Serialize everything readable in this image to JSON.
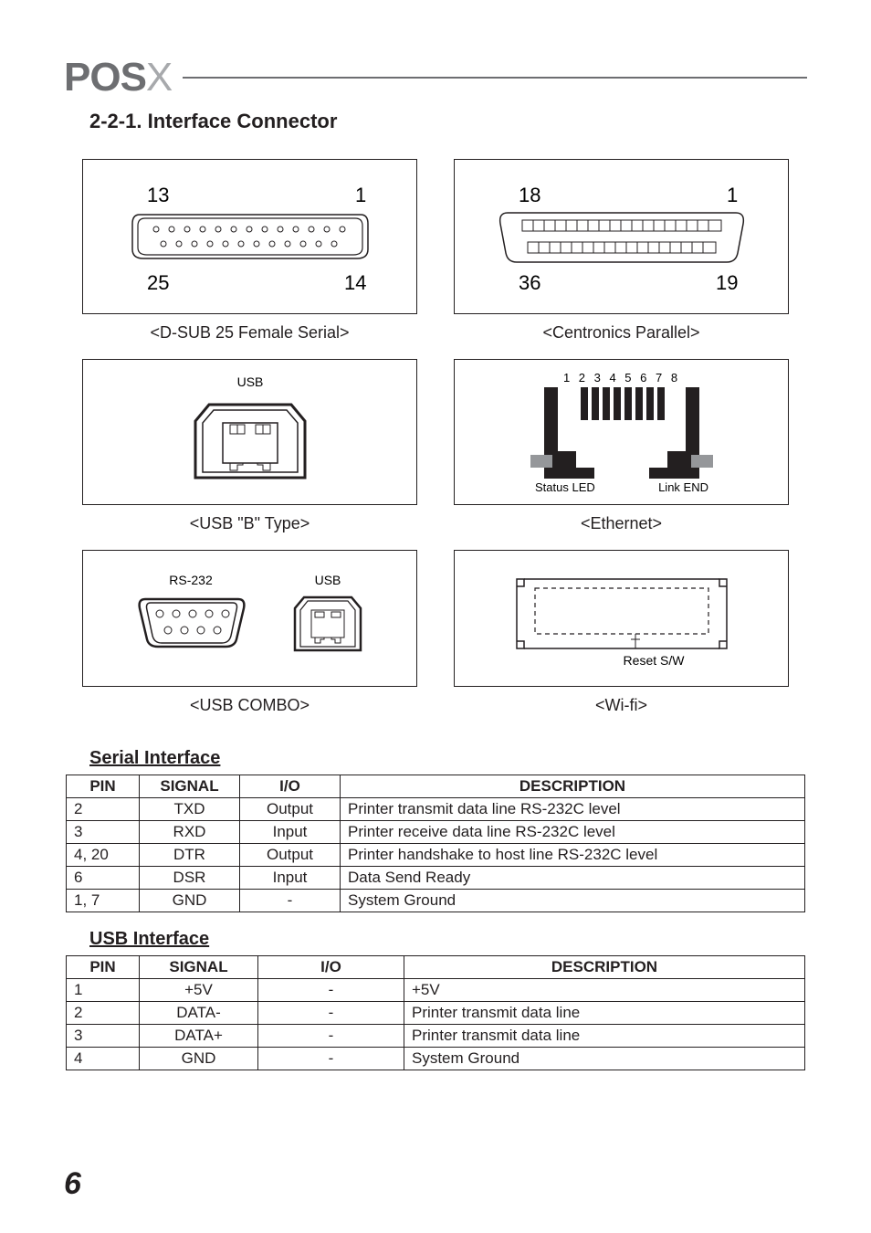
{
  "logo": {
    "brand": "POS",
    "suffix": "X"
  },
  "section_title": "2-2-1. Interface Connector",
  "diagrams": {
    "dsub": {
      "caption": "<D-SUB 25 Female Serial>",
      "labels": {
        "tl": "13",
        "tr": "1",
        "bl": "25",
        "br": "14"
      }
    },
    "centronics": {
      "caption": "<Centronics Parallel>",
      "labels": {
        "tl": "18",
        "tr": "1",
        "bl": "36",
        "br": "19"
      }
    },
    "usb_b": {
      "caption": "<USB \"B\" Type>",
      "label": "USB"
    },
    "ethernet": {
      "caption": "<Ethernet>",
      "top_label": "1 2 3 4 5 6 7 8",
      "left_label": "Status LED",
      "right_label": "Link END"
    },
    "usb_combo": {
      "caption": "<USB COMBO>",
      "left_label": "RS-232",
      "right_label": "USB"
    },
    "wifi": {
      "caption": "<Wi-fi>",
      "label": "Reset S/W"
    }
  },
  "serial_table": {
    "heading": "Serial Interface",
    "columns": [
      "PIN",
      "SIGNAL",
      "I/O",
      "DESCRIPTION"
    ],
    "rows": [
      [
        "2",
        "TXD",
        "Output",
        "Printer transmit data line RS-232C level"
      ],
      [
        "3",
        "RXD",
        "Input",
        "Printer receive data line RS-232C level"
      ],
      [
        "4, 20",
        "DTR",
        "Output",
        "Printer handshake to host line RS-232C level"
      ],
      [
        "6",
        "DSR",
        "Input",
        "Data Send Ready"
      ],
      [
        "1, 7",
        "GND",
        "-",
        "System Ground"
      ]
    ],
    "col_widths": [
      "80px",
      "110px",
      "110px",
      "auto"
    ]
  },
  "usb_table": {
    "heading": "USB Interface",
    "columns": [
      "PIN",
      "SIGNAL",
      "I/O",
      "DESCRIPTION"
    ],
    "rows": [
      [
        "1",
        "+5V",
        "-",
        "+5V"
      ],
      [
        "2",
        "DATA-",
        "-",
        "Printer transmit data line"
      ],
      [
        "3",
        "DATA+",
        "-",
        "Printer transmit data line"
      ],
      [
        "4",
        "GND",
        "-",
        "System Ground"
      ]
    ],
    "col_widths": [
      "80px",
      "130px",
      "160px",
      "auto"
    ]
  },
  "page_number": "6",
  "colors": {
    "text": "#231f20",
    "logo_dark": "#6d6e71",
    "logo_light": "#a7a9ac",
    "border": "#231f20",
    "eth_accent": "#95979a"
  }
}
